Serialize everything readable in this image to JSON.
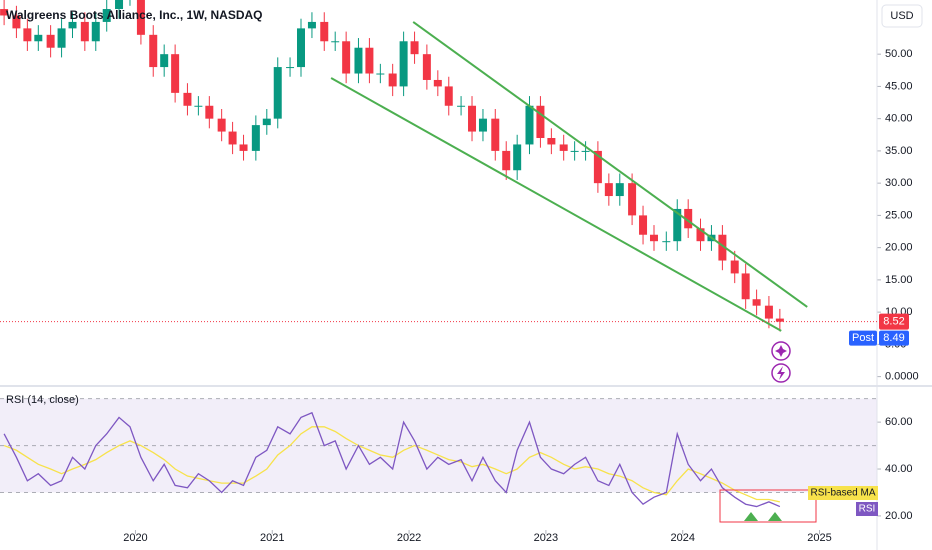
{
  "chart_data": [
    {
      "type": "candlestick",
      "title": "Walgreens Boots Alliance, Inc., 1W, NASDAQ",
      "currency": "USD",
      "x": [
        2019.04,
        2019.13,
        2019.21,
        2019.29,
        2019.38,
        2019.46,
        2019.54,
        2019.63,
        2019.71,
        2019.79,
        2019.88,
        2019.96,
        2020.04,
        2020.13,
        2020.21,
        2020.29,
        2020.38,
        2020.46,
        2020.54,
        2020.63,
        2020.71,
        2020.79,
        2020.88,
        2020.96,
        2021.04,
        2021.13,
        2021.21,
        2021.29,
        2021.38,
        2021.46,
        2021.54,
        2021.63,
        2021.71,
        2021.79,
        2021.88,
        2021.96,
        2022.04,
        2022.13,
        2022.21,
        2022.29,
        2022.38,
        2022.46,
        2022.54,
        2022.63,
        2022.71,
        2022.79,
        2022.88,
        2022.96,
        2023.04,
        2023.13,
        2023.21,
        2023.29,
        2023.38,
        2023.46,
        2023.54,
        2023.63,
        2023.71,
        2023.79,
        2023.88,
        2023.96,
        2024.04,
        2024.13,
        2024.21,
        2024.29,
        2024.38,
        2024.46,
        2024.54,
        2024.63,
        2024.71
      ],
      "open": [
        57,
        56,
        54,
        52,
        53,
        51,
        54,
        55,
        52,
        55,
        57,
        59,
        59,
        53,
        48,
        50,
        44,
        42,
        42,
        40,
        38,
        36,
        35,
        39,
        40,
        48,
        48,
        54,
        55,
        52,
        52,
        47,
        51,
        47,
        47,
        45,
        52,
        50,
        46,
        45,
        42,
        42,
        38,
        40,
        35,
        32,
        36,
        42,
        37,
        36,
        35,
        35,
        35,
        30,
        28,
        30,
        25,
        22,
        21,
        21,
        26,
        23,
        21,
        22,
        18,
        16,
        12,
        11,
        9
      ],
      "high": [
        58.5,
        57.5,
        55.5,
        54.5,
        54.5,
        55.5,
        56.5,
        56.5,
        56.5,
        58.5,
        60.5,
        60.5,
        60.5,
        54.5,
        51.5,
        51.5,
        45.5,
        43.5,
        43.5,
        41.5,
        39.5,
        37.5,
        40.5,
        41.5,
        49.5,
        49.5,
        55.5,
        56.5,
        56.5,
        53.5,
        53.5,
        52.5,
        52.5,
        48.5,
        48.5,
        53.5,
        53.5,
        51.5,
        47.5,
        46.5,
        43.5,
        43.5,
        41.5,
        41.5,
        36.5,
        37.5,
        43.5,
        43.5,
        38.5,
        37.5,
        36.5,
        36.5,
        36.5,
        31.5,
        31.5,
        31.5,
        26.5,
        23.5,
        22.5,
        27.5,
        27.5,
        24.5,
        23.5,
        23.5,
        19.5,
        17.5,
        13.5,
        12.5,
        10.5
      ],
      "low": [
        54.5,
        52.5,
        50.5,
        50.5,
        49.5,
        49.5,
        52.5,
        50.5,
        50.5,
        53.5,
        55.5,
        57.5,
        51.5,
        46.5,
        46.5,
        42.5,
        40.5,
        40.5,
        38.5,
        36.5,
        34.5,
        33.5,
        33.5,
        37.5,
        38.5,
        46.5,
        46.5,
        52.5,
        50.5,
        50.5,
        45.5,
        45.5,
        45.5,
        45.5,
        43.5,
        43.5,
        48.5,
        44.5,
        43.5,
        40.5,
        40.5,
        36.5,
        36.5,
        33.5,
        30.5,
        30.5,
        34.5,
        35.5,
        34.5,
        33.5,
        33.5,
        33.5,
        28.5,
        26.5,
        26.5,
        23.5,
        20.5,
        19.5,
        19.5,
        19.5,
        21.5,
        19.5,
        19.5,
        16.5,
        14.5,
        10.5,
        9.5,
        7.5,
        7.02
      ],
      "close": [
        56,
        54,
        52,
        53,
        51,
        54,
        55,
        52,
        55,
        57,
        59,
        59,
        53,
        48,
        50,
        44,
        42,
        42,
        40,
        38,
        36,
        35,
        39,
        40,
        48,
        48,
        54,
        55,
        52,
        52,
        47,
        51,
        47,
        47,
        45,
        52,
        50,
        46,
        45,
        42,
        42,
        38,
        40,
        35,
        32,
        36,
        42,
        37,
        36,
        35,
        35,
        35,
        30,
        28,
        30,
        25,
        22,
        21,
        21,
        26,
        23,
        21,
        22,
        18,
        16,
        12,
        11,
        9,
        8.52
      ],
      "up_color": "#089981",
      "down_color": "#f23645",
      "xlim": [
        2019.01,
        2025.42
      ],
      "ylim": [
        -1.3,
        58.4
      ],
      "yticks": [
        {
          "value": 0,
          "label": "0.0000"
        },
        {
          "value": 5,
          "label": "5.00"
        },
        {
          "value": 10,
          "label": "10.00"
        },
        {
          "value": 15,
          "label": "15.00"
        },
        {
          "value": 20,
          "label": "20.00"
        },
        {
          "value": 25,
          "label": "25.00"
        },
        {
          "value": 30,
          "label": "30.00"
        },
        {
          "value": 35,
          "label": "35.00"
        },
        {
          "value": 40,
          "label": "40.00"
        },
        {
          "value": 45,
          "label": "45.00"
        },
        {
          "value": 50,
          "label": "50.00"
        }
      ],
      "trend_lines": [
        {
          "x": [
            2022.03,
            2024.91
          ],
          "y": [
            55,
            10.8
          ],
          "color": "#4caf50"
        },
        {
          "x": [
            2021.43,
            2024.72
          ],
          "y": [
            46.3,
            7.1
          ],
          "color": "#4caf50"
        }
      ],
      "last_price": 8.52,
      "last_price_color": "#f23645",
      "post_label": "Post",
      "post_price": 8.49,
      "post_color": "#2962ff"
    },
    {
      "type": "line",
      "title": "RSI (14, close)",
      "x": [
        2019.04,
        2019.13,
        2019.21,
        2019.29,
        2019.38,
        2019.46,
        2019.54,
        2019.63,
        2019.71,
        2019.79,
        2019.88,
        2019.96,
        2020.04,
        2020.13,
        2020.21,
        2020.29,
        2020.38,
        2020.46,
        2020.54,
        2020.63,
        2020.71,
        2020.79,
        2020.88,
        2020.96,
        2021.04,
        2021.13,
        2021.21,
        2021.29,
        2021.38,
        2021.46,
        2021.54,
        2021.63,
        2021.71,
        2021.79,
        2021.88,
        2021.96,
        2022.04,
        2022.13,
        2022.21,
        2022.29,
        2022.38,
        2022.46,
        2022.54,
        2022.63,
        2022.71,
        2022.79,
        2022.88,
        2022.96,
        2023.04,
        2023.13,
        2023.21,
        2023.29,
        2023.38,
        2023.46,
        2023.54,
        2023.63,
        2023.71,
        2023.79,
        2023.88,
        2023.96,
        2024.04,
        2024.13,
        2024.21,
        2024.29,
        2024.38,
        2024.46,
        2024.54,
        2024.63,
        2024.71
      ],
      "series": [
        {
          "name": "RSI",
          "color": "#7e57c2",
          "values": [
            55,
            45,
            35,
            38,
            33,
            35,
            45,
            40,
            50,
            55,
            62,
            58,
            45,
            35,
            42,
            33,
            32,
            38,
            35,
            30,
            35,
            33,
            45,
            48,
            58,
            55,
            62,
            64,
            50,
            52,
            40,
            50,
            42,
            45,
            40,
            60,
            52,
            40,
            45,
            42,
            44,
            35,
            45,
            35,
            30,
            48,
            60,
            45,
            40,
            38,
            42,
            45,
            35,
            33,
            42,
            30,
            25,
            28,
            30,
            55,
            42,
            35,
            40,
            32,
            28,
            25,
            24,
            26,
            24
          ]
        },
        {
          "name": "RSI-based MA",
          "color": "#f7e24b",
          "values": [
            50,
            48,
            45,
            42,
            40,
            38,
            40,
            42,
            44,
            47,
            50,
            52,
            50,
            47,
            44,
            40,
            37,
            36,
            35,
            34,
            34,
            34,
            37,
            40,
            46,
            50,
            55,
            58,
            58,
            56,
            53,
            50,
            48,
            46,
            45,
            48,
            50,
            48,
            46,
            44,
            43,
            41,
            42,
            40,
            38,
            40,
            45,
            47,
            45,
            42,
            40,
            41,
            40,
            38,
            37,
            35,
            32,
            30,
            29,
            35,
            40,
            38,
            36,
            34,
            31,
            29,
            27,
            27,
            26
          ]
        }
      ],
      "band_lines": [
        70,
        50,
        30
      ],
      "xlim": [
        2019.01,
        2025.42
      ],
      "xticks": [
        2020,
        2021,
        2022,
        2023,
        2024,
        2025
      ],
      "ylim": [
        14,
        73.7
      ],
      "yticks": [
        {
          "value": 60,
          "label": "60.00"
        },
        {
          "value": 40,
          "label": "40.00"
        },
        {
          "value": 20,
          "label": "20.00"
        }
      ]
    }
  ]
}
